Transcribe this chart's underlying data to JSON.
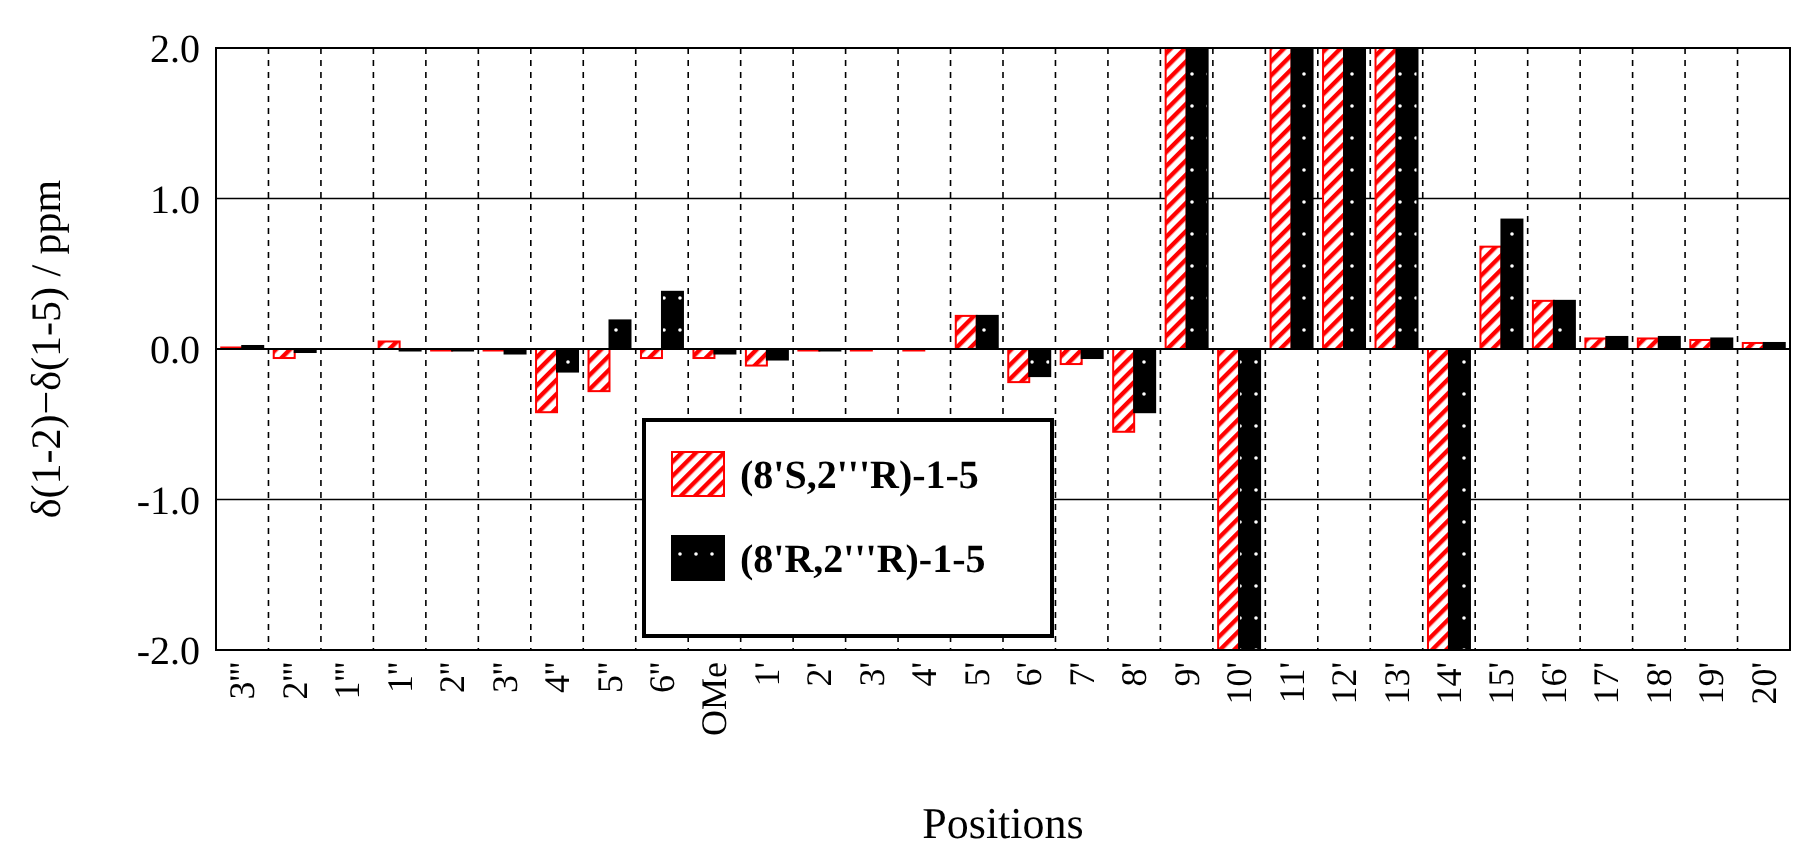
{
  "chart_data": {
    "type": "bar",
    "xlabel": "Positions",
    "ylabel": "δ(1-2)−δ(1-5) / ppm",
    "categories": [
      "3'''",
      "2'''",
      "1'''",
      "1''",
      "2''",
      "3''",
      "4''",
      "5''",
      "6''",
      "OMe",
      "1'",
      "2'",
      "3'",
      "4'",
      "5'",
      "6'",
      "7'",
      "8'",
      "9'",
      "10'",
      "11'",
      "12'",
      "13'",
      "14'",
      "15'",
      "16'",
      "17'",
      "18'",
      "19'",
      "20'"
    ],
    "series": [
      {
        "name": "(8'S,2'''R)-1-5",
        "color": "#ff0000",
        "values": [
          0.01,
          -0.06,
          0,
          0.05,
          -0.01,
          -0.01,
          -0.42,
          -0.28,
          -0.06,
          -0.06,
          -0.11,
          -0.01,
          -0.01,
          -0.01,
          0.22,
          -0.22,
          -0.1,
          -0.55,
          2.0,
          -2.0,
          2.0,
          2.0,
          2.0,
          -2.0,
          0.68,
          0.32,
          0.07,
          0.07,
          0.06,
          0.04
        ]
      },
      {
        "name": "(8'R,2'''R)-1-5",
        "color": "#000000",
        "values": [
          0.02,
          -0.02,
          0,
          -0.01,
          -0.01,
          -0.03,
          -0.15,
          0.19,
          0.38,
          -0.03,
          -0.07,
          -0.01,
          0,
          0,
          0.22,
          -0.18,
          -0.06,
          -0.42,
          2.0,
          -2.0,
          2.0,
          2.0,
          2.0,
          -2.0,
          0.86,
          0.32,
          0.08,
          0.08,
          0.07,
          0.04
        ]
      }
    ],
    "ylim": [
      -2.0,
      2.0
    ],
    "yticks": [
      {
        "value": -2,
        "label": "-2.0"
      },
      {
        "value": -1,
        "label": "-1.0"
      },
      {
        "value": 0,
        "label": "0.0"
      },
      {
        "value": 1,
        "label": "1.0"
      },
      {
        "value": 2,
        "label": "2.0"
      }
    ],
    "grid": true,
    "legend": "bottom"
  }
}
